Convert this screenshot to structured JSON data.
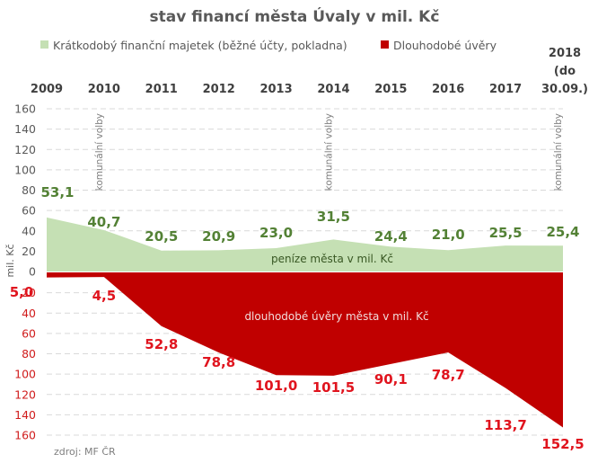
{
  "chart_data": {
    "type": "area",
    "title": "stav financí města Úvaly v mil. Kč",
    "categories": [
      "2009",
      "2010",
      "2011",
      "2012",
      "2013",
      "2014",
      "2015",
      "2016",
      "2017",
      [
        "2018",
        "(do",
        "30.09.)"
      ]
    ],
    "series": [
      {
        "name": "Krátkodobý finanční majetek (běžné účty, pokladna)",
        "color": "#c5e0b4",
        "label_color": "#538135",
        "direction": "up",
        "values": [
          53.1,
          40.7,
          20.5,
          20.9,
          23.0,
          31.5,
          24.4,
          21.0,
          25.5,
          25.4
        ],
        "labels": [
          "53,1",
          "40,7",
          "20,5",
          "20,9",
          "23,0",
          "31,5",
          "24,4",
          "21,0",
          "25,5",
          "25,4"
        ],
        "area_label": "peníze města v mil. Kč"
      },
      {
        "name": "Dlouhodobé úvěry",
        "color": "#c00000",
        "label_color": "#e0141e",
        "direction": "down",
        "values": [
          5.0,
          4.5,
          52.8,
          78.8,
          101.0,
          101.5,
          90.1,
          78.7,
          113.7,
          152.5
        ],
        "labels": [
          "5,0",
          "4,5",
          "52,8",
          "78,8",
          "101,0",
          "101,5",
          "90,1",
          "78,7",
          "113,7",
          "152,5"
        ],
        "area_label": "dlouhodobé úvěry města v mil. Kč"
      }
    ],
    "ylim": [
      -160,
      160
    ],
    "yticks_positive": [
      "0",
      "20",
      "40",
      "60",
      "80",
      "100",
      "120",
      "140",
      "160"
    ],
    "yticks_negative": [
      "20",
      "40",
      "60",
      "80",
      "100",
      "120",
      "140",
      "160"
    ],
    "ylabel": "mil. Kč",
    "xlabel": "",
    "grid": true,
    "legend_position": "top",
    "annotations": [
      {
        "category": "2010",
        "text": "komunální volby"
      },
      {
        "category": "2014",
        "text": "komunální volby"
      },
      {
        "category": "2018",
        "text": "komunální volby"
      }
    ],
    "source": "zdroj: MF ČR"
  }
}
